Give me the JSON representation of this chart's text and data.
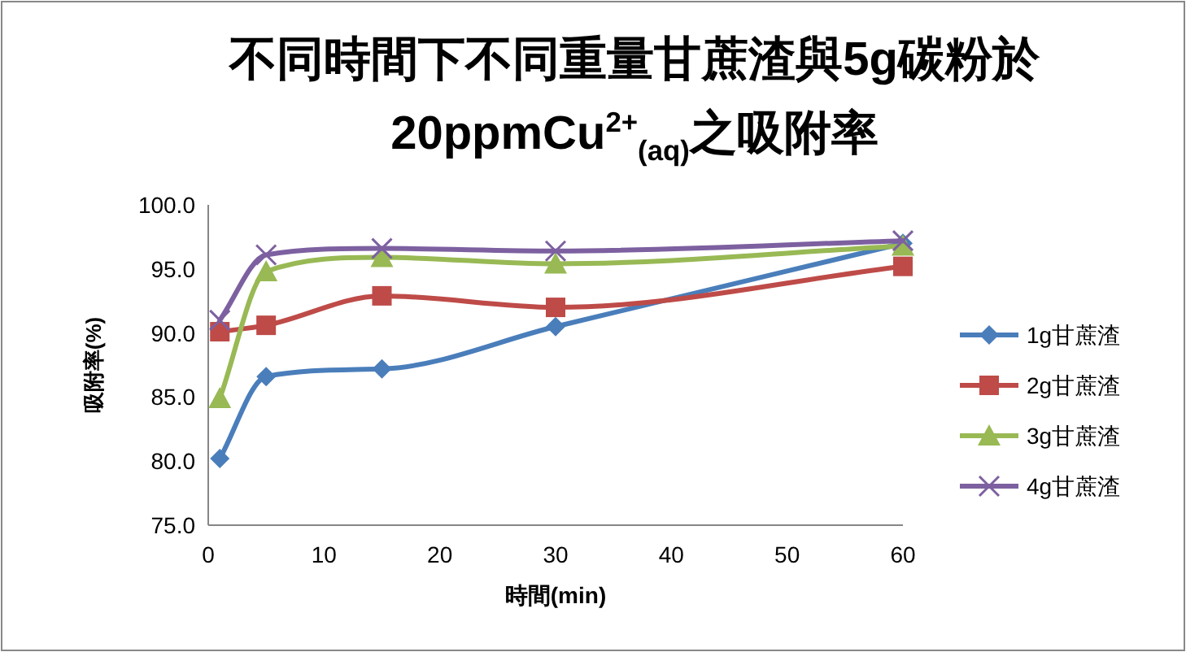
{
  "chart_data": {
    "type": "line",
    "title": "不同時間下不同重量甘蔗渣與5g碳粉於20ppmCu$^{2+}$$_{(aq)}$之吸附率",
    "xlabel": "時間(min)",
    "ylabel": "吸附率(%)",
    "x": [
      1,
      5,
      15,
      30,
      60
    ],
    "xlim": [
      0,
      60
    ],
    "xticks": [
      0,
      10,
      20,
      30,
      40,
      50,
      60
    ],
    "ylim": [
      75,
      100
    ],
    "yticks": [
      {
        "value": 75,
        "label": "75.0"
      },
      {
        "value": 80,
        "label": "80.0"
      },
      {
        "value": 85,
        "label": "85.0"
      },
      {
        "value": 90,
        "label": "90.0"
      },
      {
        "value": 95,
        "label": "95.0"
      },
      {
        "value": 100,
        "label": "100.0"
      }
    ],
    "grid": false,
    "legend": "right",
    "series": [
      {
        "name": "1g甘蔗渣",
        "color": "#4a7ebb",
        "marker": "diamond",
        "values": [
          80.2,
          86.6,
          87.2,
          90.5,
          97.0
        ]
      },
      {
        "name": "2g甘蔗渣",
        "color": "#be4b48",
        "marker": "square",
        "values": [
          90.1,
          90.6,
          92.9,
          92.0,
          95.2
        ]
      },
      {
        "name": "3g甘蔗渣",
        "color": "#98b954",
        "marker": "triangle",
        "values": [
          84.9,
          94.8,
          95.9,
          95.4,
          96.8
        ]
      },
      {
        "name": "4g甘蔗渣",
        "color": "#7d60a0",
        "marker": "cross",
        "values": [
          91.0,
          96.1,
          96.6,
          96.4,
          97.2
        ]
      }
    ]
  }
}
